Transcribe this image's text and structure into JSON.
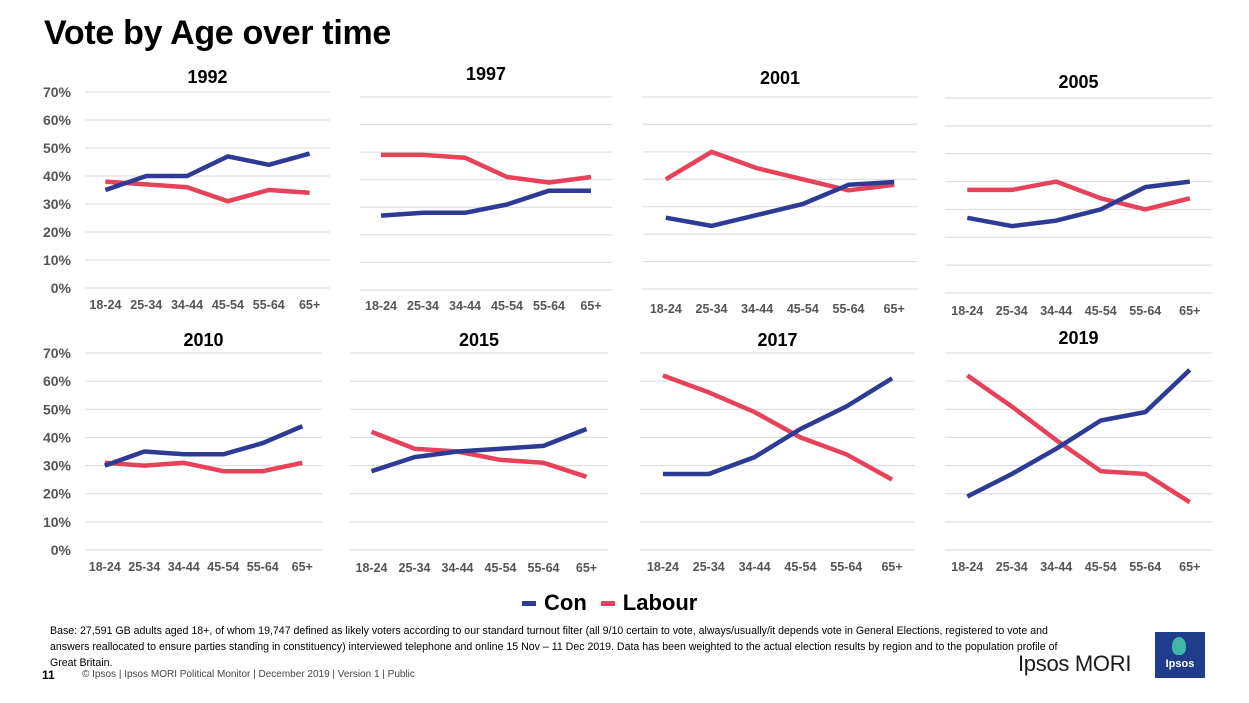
{
  "title": "Vote by Age over time",
  "legend": [
    {
      "name": "Con",
      "color": "#2e3a94"
    },
    {
      "name": "Labour",
      "color": "#e8415a"
    }
  ],
  "chart_data": [
    {
      "type": "line",
      "title": "1992",
      "categories": [
        "18-24",
        "25-34",
        "34-44",
        "45-54",
        "55-64",
        "65+"
      ],
      "yticks": [
        "0%",
        "10%",
        "20%",
        "30%",
        "40%",
        "50%",
        "60%",
        "70%"
      ],
      "ylim": [
        0,
        70
      ],
      "series": [
        {
          "name": "Con",
          "values": [
            35,
            40,
            40,
            47,
            44,
            48
          ]
        },
        {
          "name": "Labour",
          "values": [
            38,
            37,
            36,
            31,
            35,
            34
          ]
        }
      ]
    },
    {
      "type": "line",
      "title": "1997",
      "categories": [
        "18-24",
        "25-34",
        "34-44",
        "45-54",
        "55-64",
        "65+"
      ],
      "ylim": [
        0,
        70
      ],
      "series": [
        {
          "name": "Con",
          "values": [
            27,
            28,
            28,
            31,
            36,
            36
          ]
        },
        {
          "name": "Labour",
          "values": [
            49,
            49,
            48,
            41,
            39,
            41
          ]
        }
      ]
    },
    {
      "type": "line",
      "title": "2001",
      "categories": [
        "18-24",
        "25-34",
        "34-44",
        "45-54",
        "55-64",
        "65+"
      ],
      "ylim": [
        0,
        70
      ],
      "series": [
        {
          "name": "Con",
          "values": [
            26,
            23,
            27,
            31,
            38,
            39
          ]
        },
        {
          "name": "Labour",
          "values": [
            40,
            50,
            44,
            40,
            36,
            38
          ]
        }
      ]
    },
    {
      "type": "line",
      "title": "2005",
      "categories": [
        "18-24",
        "25-34",
        "34-44",
        "45-54",
        "55-64",
        "65+"
      ],
      "ylim": [
        0,
        70
      ],
      "series": [
        {
          "name": "Con",
          "values": [
            27,
            24,
            26,
            30,
            38,
            40
          ]
        },
        {
          "name": "Labour",
          "values": [
            37,
            37,
            40,
            34,
            30,
            34
          ]
        }
      ]
    },
    {
      "type": "line",
      "title": "2010",
      "categories": [
        "18-24",
        "25-34",
        "34-44",
        "45-54",
        "55-64",
        "65+"
      ],
      "yticks": [
        "0%",
        "10%",
        "20%",
        "30%",
        "40%",
        "50%",
        "60%",
        "70%"
      ],
      "ylim": [
        0,
        70
      ],
      "series": [
        {
          "name": "Con",
          "values": [
            30,
            35,
            34,
            34,
            38,
            44
          ]
        },
        {
          "name": "Labour",
          "values": [
            31,
            30,
            31,
            28,
            28,
            31
          ]
        }
      ]
    },
    {
      "type": "line",
      "title": "2015",
      "categories": [
        "18-24",
        "25-34",
        "34-44",
        "45-54",
        "55-64",
        "65+"
      ],
      "ylim": [
        0,
        70
      ],
      "series": [
        {
          "name": "Con",
          "values": [
            28,
            33,
            35,
            36,
            37,
            43
          ]
        },
        {
          "name": "Labour",
          "values": [
            42,
            36,
            35,
            32,
            31,
            26
          ]
        }
      ]
    },
    {
      "type": "line",
      "title": "2017",
      "categories": [
        "18-24",
        "25-34",
        "34-44",
        "45-54",
        "55-64",
        "65+"
      ],
      "ylim": [
        0,
        70
      ],
      "series": [
        {
          "name": "Con",
          "values": [
            27,
            27,
            33,
            43,
            51,
            61
          ]
        },
        {
          "name": "Labour",
          "values": [
            62,
            56,
            49,
            40,
            34,
            25
          ]
        }
      ]
    },
    {
      "type": "line",
      "title": "2019",
      "categories": [
        "18-24",
        "25-34",
        "34-44",
        "45-54",
        "55-64",
        "65+"
      ],
      "ylim": [
        0,
        70
      ],
      "series": [
        {
          "name": "Con",
          "values": [
            19,
            27,
            36,
            46,
            49,
            64
          ]
        },
        {
          "name": "Labour",
          "values": [
            62,
            51,
            39,
            28,
            27,
            17
          ]
        }
      ]
    }
  ],
  "footnote": "Base: 27,591 GB adults aged 18+, of whom 19,747 defined as likely voters according to our standard turnout filter (all  9/10 certain to vote, always/usually/it depends vote  in General Elections, registered to vote and answers reallocated to ensure parties standing in constituency) interviewed telephone and online 15 Nov – 11 Dec 2019. Data has been weighted to the actual election results by region and to the population profile of Great Britain.",
  "footer": {
    "page_number": "11",
    "text": "© Ipsos | Ipsos MORI Political Monitor | December 2019 | Version 1 | Public",
    "brand": "Ipsos MORI",
    "logo_text": "Ipsos"
  }
}
